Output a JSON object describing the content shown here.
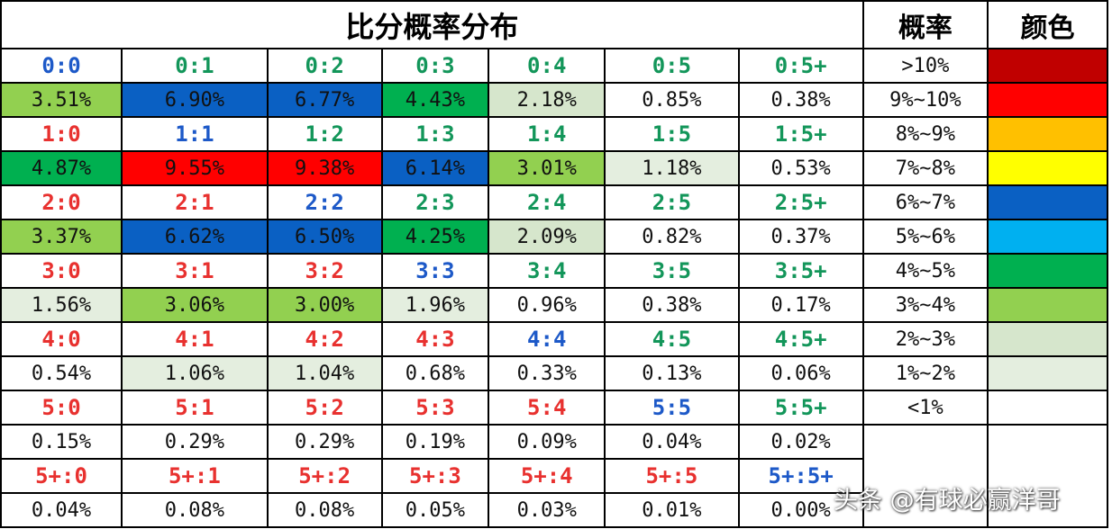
{
  "title": "比分概率分布",
  "legend_header": "概率",
  "color_header": "颜色",
  "colors": {
    "dark_red": "#c00000",
    "red": "#ff0000",
    "orange": "#ffc000",
    "yellow": "#ffff00",
    "blue": "#0a60c3",
    "light_blue": "#00b0f0",
    "green": "#00b050",
    "light_green": "#92d050",
    "pale_green": "#d6e6cc",
    "pale_green_2": "#e4eedf",
    "none": "#ffffff",
    "score_red": "#e8312f",
    "score_blue": "#1d59c8",
    "score_green": "#13965a"
  },
  "grid": [
    {
      "scores": [
        {
          "label": "0:0",
          "color": "blue"
        },
        {
          "label": "0:1",
          "color": "green"
        },
        {
          "label": "0:2",
          "color": "green"
        },
        {
          "label": "0:3",
          "color": "green"
        },
        {
          "label": "0:4",
          "color": "green"
        },
        {
          "label": "0:5",
          "color": "green"
        },
        {
          "label": "0:5+",
          "color": "green"
        }
      ],
      "probs": [
        {
          "value": "3.51%",
          "fill": "light_green"
        },
        {
          "value": "6.90%",
          "fill": "blue"
        },
        {
          "value": "6.77%",
          "fill": "blue"
        },
        {
          "value": "4.43%",
          "fill": "green"
        },
        {
          "value": "2.18%",
          "fill": "pale_green"
        },
        {
          "value": "0.85%",
          "fill": "none"
        },
        {
          "value": "0.38%",
          "fill": "none"
        }
      ]
    },
    {
      "scores": [
        {
          "label": "1:0",
          "color": "red"
        },
        {
          "label": "1:1",
          "color": "blue"
        },
        {
          "label": "1:2",
          "color": "green"
        },
        {
          "label": "1:3",
          "color": "green"
        },
        {
          "label": "1:4",
          "color": "green"
        },
        {
          "label": "1:5",
          "color": "green"
        },
        {
          "label": "1:5+",
          "color": "green"
        }
      ],
      "probs": [
        {
          "value": "4.87%",
          "fill": "green"
        },
        {
          "value": "9.55%",
          "fill": "red"
        },
        {
          "value": "9.38%",
          "fill": "red"
        },
        {
          "value": "6.14%",
          "fill": "blue"
        },
        {
          "value": "3.01%",
          "fill": "light_green"
        },
        {
          "value": "1.18%",
          "fill": "pale_green_2"
        },
        {
          "value": "0.53%",
          "fill": "none"
        }
      ]
    },
    {
      "scores": [
        {
          "label": "2:0",
          "color": "red"
        },
        {
          "label": "2:1",
          "color": "red"
        },
        {
          "label": "2:2",
          "color": "blue"
        },
        {
          "label": "2:3",
          "color": "green"
        },
        {
          "label": "2:4",
          "color": "green"
        },
        {
          "label": "2:5",
          "color": "green"
        },
        {
          "label": "2:5+",
          "color": "green"
        }
      ],
      "probs": [
        {
          "value": "3.37%",
          "fill": "light_green"
        },
        {
          "value": "6.62%",
          "fill": "blue"
        },
        {
          "value": "6.50%",
          "fill": "blue"
        },
        {
          "value": "4.25%",
          "fill": "green"
        },
        {
          "value": "2.09%",
          "fill": "pale_green"
        },
        {
          "value": "0.82%",
          "fill": "none"
        },
        {
          "value": "0.37%",
          "fill": "none"
        }
      ]
    },
    {
      "scores": [
        {
          "label": "3:0",
          "color": "red"
        },
        {
          "label": "3:1",
          "color": "red"
        },
        {
          "label": "3:2",
          "color": "red"
        },
        {
          "label": "3:3",
          "color": "blue"
        },
        {
          "label": "3:4",
          "color": "green"
        },
        {
          "label": "3:5",
          "color": "green"
        },
        {
          "label": "3:5+",
          "color": "green"
        }
      ],
      "probs": [
        {
          "value": "1.56%",
          "fill": "pale_green_2"
        },
        {
          "value": "3.06%",
          "fill": "light_green"
        },
        {
          "value": "3.00%",
          "fill": "light_green"
        },
        {
          "value": "1.96%",
          "fill": "pale_green_2"
        },
        {
          "value": "0.96%",
          "fill": "none"
        },
        {
          "value": "0.38%",
          "fill": "none"
        },
        {
          "value": "0.17%",
          "fill": "none"
        }
      ]
    },
    {
      "scores": [
        {
          "label": "4:0",
          "color": "red"
        },
        {
          "label": "4:1",
          "color": "red"
        },
        {
          "label": "4:2",
          "color": "red"
        },
        {
          "label": "4:3",
          "color": "red"
        },
        {
          "label": "4:4",
          "color": "blue"
        },
        {
          "label": "4:5",
          "color": "green"
        },
        {
          "label": "4:5+",
          "color": "green"
        }
      ],
      "probs": [
        {
          "value": "0.54%",
          "fill": "none"
        },
        {
          "value": "1.06%",
          "fill": "pale_green_2"
        },
        {
          "value": "1.04%",
          "fill": "pale_green_2"
        },
        {
          "value": "0.68%",
          "fill": "none"
        },
        {
          "value": "0.33%",
          "fill": "none"
        },
        {
          "value": "0.13%",
          "fill": "none"
        },
        {
          "value": "0.06%",
          "fill": "none"
        }
      ]
    },
    {
      "scores": [
        {
          "label": "5:0",
          "color": "red"
        },
        {
          "label": "5:1",
          "color": "red"
        },
        {
          "label": "5:2",
          "color": "red"
        },
        {
          "label": "5:3",
          "color": "red"
        },
        {
          "label": "5:4",
          "color": "red"
        },
        {
          "label": "5:5",
          "color": "blue"
        },
        {
          "label": "5:5+",
          "color": "green"
        }
      ],
      "probs": [
        {
          "value": "0.15%",
          "fill": "none"
        },
        {
          "value": "0.29%",
          "fill": "none"
        },
        {
          "value": "0.29%",
          "fill": "none"
        },
        {
          "value": "0.19%",
          "fill": "none"
        },
        {
          "value": "0.09%",
          "fill": "none"
        },
        {
          "value": "0.04%",
          "fill": "none"
        },
        {
          "value": "0.02%",
          "fill": "none"
        }
      ]
    },
    {
      "scores": [
        {
          "label": "5+:0",
          "color": "red"
        },
        {
          "label": "5+:1",
          "color": "red"
        },
        {
          "label": "5+:2",
          "color": "red"
        },
        {
          "label": "5+:3",
          "color": "red"
        },
        {
          "label": "5+:4",
          "color": "red"
        },
        {
          "label": "5+:5",
          "color": "red"
        },
        {
          "label": "5+:5+",
          "color": "blue"
        }
      ],
      "probs": [
        {
          "value": "0.04%",
          "fill": "none"
        },
        {
          "value": "0.08%",
          "fill": "none"
        },
        {
          "value": "0.08%",
          "fill": "none"
        },
        {
          "value": "0.05%",
          "fill": "none"
        },
        {
          "value": "0.03%",
          "fill": "none"
        },
        {
          "value": "0.01%",
          "fill": "none"
        },
        {
          "value": "0.00%",
          "fill": "none"
        }
      ]
    }
  ],
  "legend": [
    {
      "label": ">10%",
      "fill": "dark_red"
    },
    {
      "label": "9%~10%",
      "fill": "red"
    },
    {
      "label": "8%~9%",
      "fill": "orange"
    },
    {
      "label": "7%~8%",
      "fill": "yellow"
    },
    {
      "label": "6%~7%",
      "fill": "blue"
    },
    {
      "label": "5%~6%",
      "fill": "light_blue"
    },
    {
      "label": "4%~5%",
      "fill": "green"
    },
    {
      "label": "3%~4%",
      "fill": "light_green"
    },
    {
      "label": "2%~3%",
      "fill": "pale_green"
    },
    {
      "label": "1%~2%",
      "fill": "pale_green_2"
    },
    {
      "label": "<1%",
      "fill": "none"
    }
  ],
  "watermark": "头条 @有球必赢洋哥"
}
